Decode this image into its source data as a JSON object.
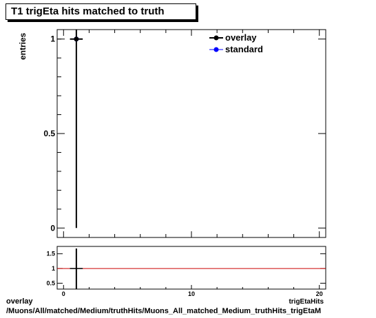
{
  "title": "T1 trigEta hits matched to truth",
  "footer": {
    "line1": "overlay",
    "line2": "/Muons/All/matched/Medium/truthHits/Muons_All_matched_Medium_truthHits_trigEtaM"
  },
  "colors": {
    "overlay": "#000000",
    "standard": "#0000ff",
    "ratio_line": "#cc0000"
  },
  "chart_data": [
    {
      "type": "scatter",
      "ylabel": "entries",
      "xlim": [
        -0.5,
        20.5
      ],
      "ylim": [
        -0.05,
        1.05
      ],
      "yticks": [
        0,
        0.5,
        1
      ],
      "ytick_labels": [
        "0",
        "0.5",
        "1"
      ],
      "legend": {
        "placement": "top-right",
        "entries": [
          "overlay",
          "standard"
        ]
      },
      "series": [
        {
          "name": "overlay",
          "x": [
            1
          ],
          "y": [
            1
          ],
          "yerr": [
            1
          ],
          "xerr": [
            0.5
          ]
        },
        {
          "name": "standard",
          "x": [
            1
          ],
          "y": [
            1
          ],
          "yerr": [
            1
          ],
          "xerr": [
            0.5
          ]
        }
      ]
    },
    {
      "type": "line",
      "xlabel": "trigEtaHits",
      "xlim": [
        -0.5,
        20.5
      ],
      "ylim": [
        0.3,
        1.75
      ],
      "xticks": [
        0,
        10,
        20
      ],
      "xtick_labels": [
        "0",
        "10",
        "20"
      ],
      "yticks": [
        0.5,
        1,
        1.5
      ],
      "ytick_labels": [
        "0.5",
        "1",
        "1.5"
      ],
      "reference_line": 1,
      "points": [
        {
          "x": 1,
          "y": 1,
          "xerr": 0.5
        }
      ]
    }
  ]
}
